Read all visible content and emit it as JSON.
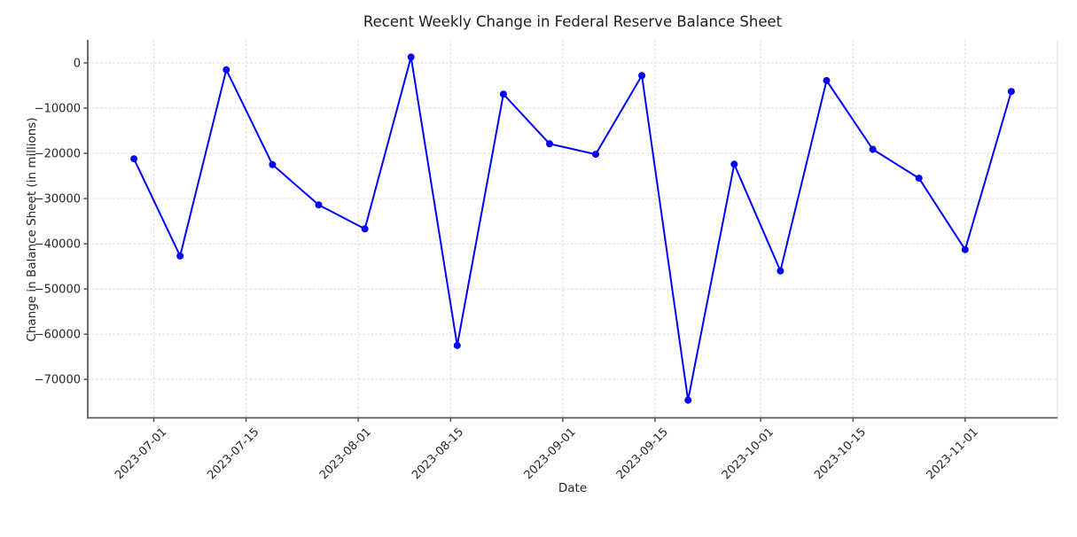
{
  "figure": {
    "background": "#ffffff"
  },
  "chart_data": {
    "type": "line",
    "title": "Recent Weekly Change in Federal Reserve Balance Sheet",
    "xlabel": "Date",
    "ylabel": "Change in Balance Sheet (in millions)",
    "grid": true,
    "grid_style": "dashed",
    "legend": "none",
    "line_color": "#0000ff",
    "marker": "circle",
    "x": [
      "2023-06-28",
      "2023-07-05",
      "2023-07-12",
      "2023-07-19",
      "2023-07-26",
      "2023-08-02",
      "2023-08-09",
      "2023-08-16",
      "2023-08-23",
      "2023-08-30",
      "2023-09-06",
      "2023-09-13",
      "2023-09-20",
      "2023-09-27",
      "2023-10-04",
      "2023-10-11",
      "2023-10-18",
      "2023-10-25",
      "2023-11-01",
      "2023-11-08"
    ],
    "y": [
      -21200,
      -42700,
      -1500,
      -22500,
      -31400,
      -36700,
      1300,
      -62500,
      -6900,
      -17900,
      -20200,
      -2800,
      -74600,
      -22400,
      -46000,
      -3900,
      -19100,
      -25500,
      -41300,
      -6300
    ],
    "x_ticks": [
      "2023-07-01",
      "2023-07-15",
      "2023-08-01",
      "2023-08-15",
      "2023-09-01",
      "2023-09-15",
      "2023-10-01",
      "2023-10-15",
      "2023-11-01"
    ],
    "y_ticks": [
      0,
      -10000,
      -20000,
      -30000,
      -40000,
      -50000,
      -60000,
      -70000
    ],
    "xlim": [
      "2023-06-21",
      "2023-11-15"
    ],
    "ylim": [
      -78500,
      5100
    ],
    "colors": {
      "grid": "#d9d9d9",
      "spine": "#5c5c5c",
      "right_spine": "#dcdcdc",
      "tick_label": "#262626"
    }
  }
}
